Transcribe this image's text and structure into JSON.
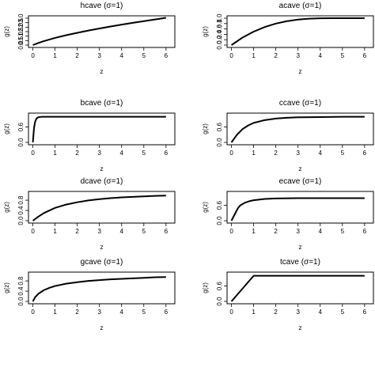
{
  "chart_data": [
    {
      "type": "line",
      "title": "hcave (σ=1)",
      "xlabel": "z",
      "ylabel": "g(z)",
      "xlim": [
        0,
        6.2
      ],
      "ylim": [
        0,
        3.0
      ],
      "xticks": [
        "0",
        "1",
        "2",
        "3",
        "4",
        "5",
        "6"
      ],
      "yticks": [
        "0.0",
        "0.5",
        "1.0",
        "1.5",
        "2.0",
        "2.5",
        "3.0"
      ],
      "series": [
        {
          "x": [
            0,
            0.25,
            0.5,
            1,
            1.5,
            2,
            2.5,
            3,
            3.5,
            4,
            4.5,
            5,
            5.5,
            6
          ],
          "y": [
            0,
            0.24,
            0.45,
            0.8,
            1.1,
            1.37,
            1.62,
            1.85,
            2.07,
            2.28,
            2.48,
            2.67,
            2.86,
            3.04
          ]
        }
      ]
    },
    {
      "type": "line",
      "title": "acave (σ=1)",
      "xlabel": "z",
      "ylabel": "g(z)",
      "xlim": [
        0,
        6.2
      ],
      "ylim": [
        0,
        1.0
      ],
      "xticks": [
        "0",
        "1",
        "2",
        "3",
        "4",
        "5",
        "6"
      ],
      "yticks": [
        "0.0",
        "0.2",
        "0.4",
        "0.6",
        "0.8",
        "1.0"
      ],
      "series": [
        {
          "x": [
            0,
            0.25,
            0.5,
            1,
            1.5,
            2,
            2.5,
            3,
            3.5,
            4,
            4.5,
            5,
            5.5,
            6
          ],
          "y": [
            0,
            0.14,
            0.28,
            0.5,
            0.67,
            0.8,
            0.89,
            0.95,
            0.98,
            0.995,
            1.0,
            1.0,
            1.0,
            1.0
          ]
        }
      ]
    },
    {
      "type": "line",
      "title": "bcave (σ=1)",
      "xlabel": "z",
      "ylabel": "g(z)",
      "xlim": [
        0,
        6.2
      ],
      "ylim": [
        0,
        1.05
      ],
      "xticks": [
        "0",
        "1",
        "2",
        "3",
        "4",
        "5",
        "6"
      ],
      "yticks": [
        "0.0",
        "0.6"
      ],
      "series": [
        {
          "x": [
            0,
            0.05,
            0.1,
            0.15,
            0.2,
            0.25,
            0.3,
            0.4,
            0.5,
            1,
            2,
            3,
            4,
            5,
            6
          ],
          "y": [
            0,
            0.55,
            0.8,
            0.91,
            0.96,
            0.98,
            0.99,
            1.0,
            1.0,
            1.0,
            1.0,
            1.0,
            1.0,
            1.0,
            1.0
          ]
        }
      ]
    },
    {
      "type": "line",
      "title": "ccave (σ=1)",
      "xlabel": "z",
      "ylabel": "g(z)",
      "xlim": [
        0,
        6.2
      ],
      "ylim": [
        0,
        1.05
      ],
      "xticks": [
        "0",
        "1",
        "2",
        "3",
        "4",
        "5",
        "6"
      ],
      "yticks": [
        "0.0",
        "0.6"
      ],
      "series": [
        {
          "x": [
            0,
            0.25,
            0.5,
            0.75,
            1,
            1.5,
            2,
            2.5,
            3,
            4,
            5,
            6
          ],
          "y": [
            0,
            0.3,
            0.52,
            0.66,
            0.76,
            0.87,
            0.93,
            0.96,
            0.98,
            0.99,
            1.0,
            1.0
          ]
        }
      ]
    },
    {
      "type": "line",
      "title": "dcave (σ=1)",
      "xlabel": "z",
      "ylabel": "g(z)",
      "xlim": [
        0,
        6.2
      ],
      "ylim": [
        0,
        1.05
      ],
      "xticks": [
        "0",
        "1",
        "2",
        "3",
        "4",
        "5",
        "6"
      ],
      "yticks": [
        "0.0",
        "0.4",
        "0.8"
      ],
      "series": [
        {
          "x": [
            0,
            0.25,
            0.5,
            1,
            1.5,
            2,
            2.5,
            3,
            3.5,
            4,
            4.5,
            5,
            5.5,
            6
          ],
          "y": [
            0,
            0.16,
            0.3,
            0.5,
            0.63,
            0.72,
            0.79,
            0.84,
            0.88,
            0.91,
            0.93,
            0.95,
            0.97,
            0.98
          ]
        }
      ]
    },
    {
      "type": "line",
      "title": "ecave (σ=1)",
      "xlabel": "z",
      "ylabel": "g(z)",
      "xlim": [
        0,
        6.2
      ],
      "ylim": [
        0,
        1.05
      ],
      "xticks": [
        "0",
        "1",
        "2",
        "3",
        "4",
        "5",
        "6"
      ],
      "yticks": [
        "0.0",
        "0.6"
      ],
      "series": [
        {
          "x": [
            0,
            0.1,
            0.2,
            0.3,
            0.4,
            0.6,
            0.8,
            1,
            1.5,
            2,
            3,
            4,
            5,
            6
          ],
          "y": [
            0,
            0.17,
            0.34,
            0.5,
            0.6,
            0.7,
            0.76,
            0.8,
            0.85,
            0.87,
            0.88,
            0.88,
            0.88,
            0.88
          ]
        }
      ]
    },
    {
      "type": "line",
      "title": "gcave (σ=1)",
      "xlabel": "z",
      "ylabel": "g(z)",
      "xlim": [
        0,
        6.2
      ],
      "ylim": [
        0,
        1.05
      ],
      "xticks": [
        "0",
        "1",
        "2",
        "3",
        "4",
        "5",
        "6"
      ],
      "yticks": [
        "0.0",
        "0.4",
        "0.8"
      ],
      "series": [
        {
          "x": [
            0,
            0.1,
            0.25,
            0.5,
            0.75,
            1,
            1.5,
            2,
            2.5,
            3,
            3.5,
            4,
            4.5,
            5,
            5.5,
            6
          ],
          "y": [
            0,
            0.16,
            0.3,
            0.44,
            0.53,
            0.6,
            0.69,
            0.75,
            0.8,
            0.83,
            0.86,
            0.88,
            0.9,
            0.92,
            0.94,
            0.95
          ]
        }
      ]
    },
    {
      "type": "line",
      "title": "tcave (σ=1)",
      "xlabel": "z",
      "ylabel": "g(z)",
      "xlim": [
        0,
        6.2
      ],
      "ylim": [
        0,
        1.05
      ],
      "xticks": [
        "0",
        "1",
        "2",
        "3",
        "4",
        "5",
        "6"
      ],
      "yticks": [
        "0.0",
        "0.6"
      ],
      "series": [
        {
          "x": [
            0,
            1,
            2,
            3,
            4,
            5,
            6
          ],
          "y": [
            0,
            1.0,
            1.0,
            1.0,
            1.0,
            1.0,
            1.0
          ]
        }
      ]
    }
  ]
}
